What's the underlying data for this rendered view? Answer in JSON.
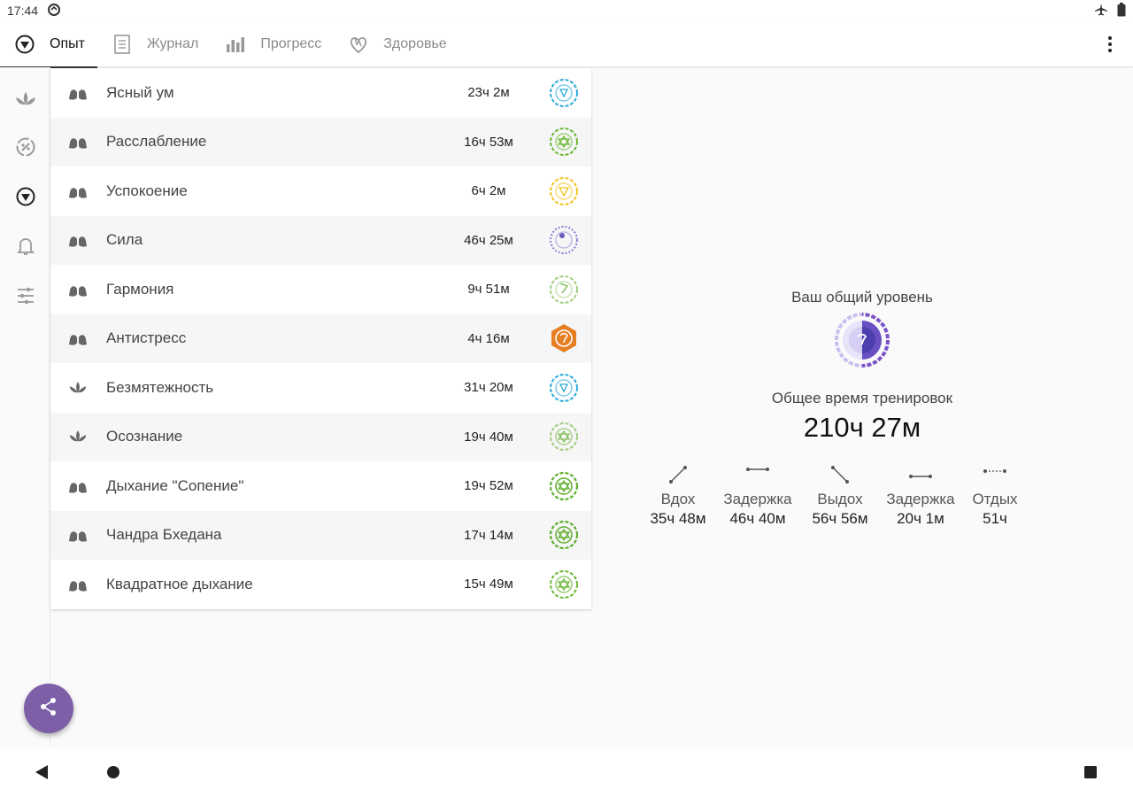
{
  "status": {
    "time": "17:44"
  },
  "tabs": [
    {
      "label": "Опыт",
      "icon": "chakra-icon",
      "active": true
    },
    {
      "label": "Журнал",
      "icon": "journal-icon",
      "active": false
    },
    {
      "label": "Прогресс",
      "icon": "bar-chart-icon",
      "active": false
    },
    {
      "label": "Здоровье",
      "icon": "heart-health-icon",
      "active": false
    }
  ],
  "rail": [
    "lotus-icon",
    "yin-yang-icon",
    "chakra-icon",
    "bell-icon",
    "sliders-icon"
  ],
  "exercises": [
    {
      "name": "Ясный ум",
      "duration": "23ч 2м",
      "type": "lungs-icon",
      "color": "#29a9d6"
    },
    {
      "name": "Расслабление",
      "duration": "16ч 53м",
      "type": "lungs-icon",
      "color": "#6bb632"
    },
    {
      "name": "Успокоение",
      "duration": "6ч 2м",
      "type": "lungs-icon",
      "color": "#f2c21a"
    },
    {
      "name": "Сила",
      "duration": "46ч 25м",
      "type": "lungs-icon",
      "color": "#8e7bd6"
    },
    {
      "name": "Гармония",
      "duration": "9ч 51м",
      "type": "lungs-icon",
      "color": "#79b84a"
    },
    {
      "name": "Антистресс",
      "duration": "4ч 16м",
      "type": "lungs-icon",
      "color": "#e67e22"
    },
    {
      "name": "Безмятежность",
      "duration": "31ч 20м",
      "type": "lotus-icon",
      "color": "#29a9d6"
    },
    {
      "name": "Осознание",
      "duration": "19ч 40м",
      "type": "lotus-icon",
      "color": "#79b84a"
    },
    {
      "name": "Дыхание \"Сопение\"",
      "duration": "19ч 52м",
      "type": "lungs-icon",
      "color": "#5fae2e"
    },
    {
      "name": "Чандра Бхедана",
      "duration": "17ч 14м",
      "type": "lungs-icon",
      "color": "#5fae2e"
    },
    {
      "name": "Квадратное дыхание",
      "duration": "15ч 49м",
      "type": "lungs-icon",
      "color": "#5fae2e"
    }
  ],
  "summary": {
    "level_label": "Ваш общий уровень",
    "total_label": "Общее время тренировок",
    "total_value": "210ч 27м",
    "phases": [
      {
        "label": "Вдох",
        "value": "35ч 48м",
        "icon": "inhale-icon"
      },
      {
        "label": "Задержка",
        "value": "46ч 40м",
        "icon": "hold-icon"
      },
      {
        "label": "Выдох",
        "value": "56ч 56м",
        "icon": "exhale-icon"
      },
      {
        "label": "Задержка",
        "value": "20ч 1м",
        "icon": "hold-icon"
      },
      {
        "label": "Отдых",
        "value": "51ч",
        "icon": "rest-icon"
      }
    ]
  },
  "colors": {
    "fab": "#7d5fa8",
    "level_badge": "#6a4fc2"
  }
}
